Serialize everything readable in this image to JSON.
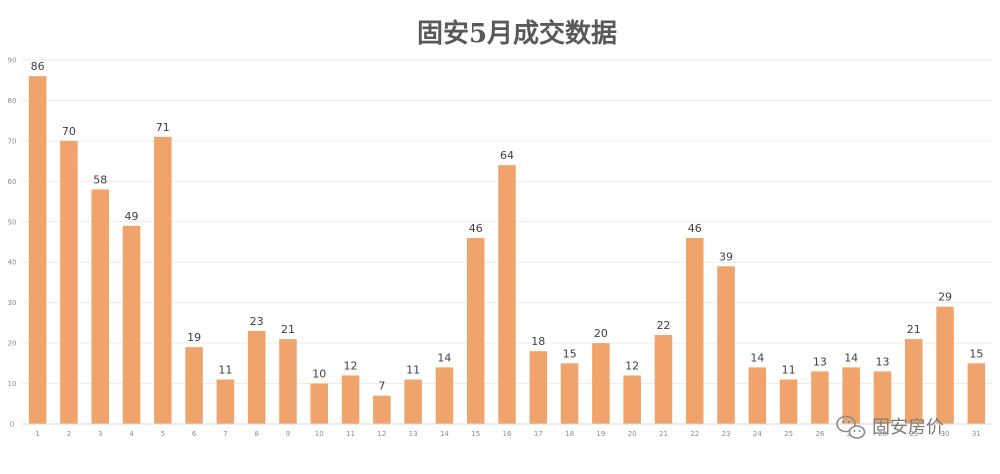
{
  "chart_data": {
    "type": "bar",
    "title": "固安5月成交数据",
    "xlabel": "",
    "ylabel": "",
    "ylim": [
      0,
      90
    ],
    "yticks": [
      0,
      10,
      20,
      30,
      40,
      50,
      60,
      70,
      80,
      90
    ],
    "grid": true,
    "legend": "none",
    "categories": [
      "1",
      "2",
      "3",
      "4",
      "5",
      "6",
      "7",
      "8",
      "9",
      "10",
      "11",
      "12",
      "13",
      "14",
      "15",
      "16",
      "17",
      "18",
      "19",
      "20",
      "21",
      "22",
      "23",
      "24",
      "25",
      "26",
      "27",
      "28",
      "29",
      "30",
      "31"
    ],
    "values": [
      86,
      70,
      58,
      49,
      71,
      19,
      11,
      23,
      21,
      10,
      12,
      7,
      11,
      14,
      46,
      64,
      18,
      15,
      20,
      12,
      22,
      46,
      39,
      14,
      11,
      13,
      14,
      13,
      21,
      29,
      15
    ],
    "bar_color": "#F0A46C"
  },
  "watermark": {
    "text": "固安房价",
    "icon": "wechat-icon"
  }
}
